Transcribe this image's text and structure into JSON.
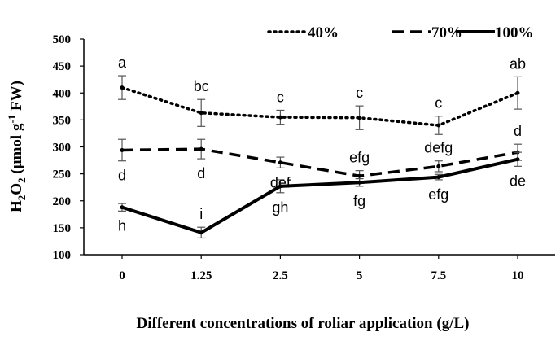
{
  "chart_data": {
    "type": "line",
    "title": "",
    "xlabel": "Different concentrations of roliar application (g/L)",
    "ylabel": {
      "main": "H",
      "sub1": "2",
      "mid": "O",
      "sub2": "2",
      "unit_a": " (µmol g",
      "sup": "-1",
      "unit_b": " FW)"
    },
    "categories": [
      "0",
      "1.25",
      "2.5",
      "5",
      "7.5",
      "10"
    ],
    "ylim": [
      100,
      500
    ],
    "yticks": [
      100,
      150,
      200,
      250,
      300,
      350,
      400,
      450,
      500
    ],
    "grid": false,
    "legend_position": "top-right",
    "series": [
      {
        "name": "40%",
        "style": "dotted",
        "values": [
          410,
          363,
          355,
          354,
          340,
          400
        ],
        "errors": [
          22,
          25,
          13,
          22,
          17,
          30
        ],
        "letters": [
          "a",
          "bc",
          "c",
          "c",
          "c",
          "ab"
        ],
        "letter_side": [
          "above",
          "above",
          "above",
          "above",
          "above",
          "above"
        ]
      },
      {
        "name": "70%",
        "style": "dashed",
        "values": [
          294,
          296,
          271,
          246,
          264,
          290
        ],
        "errors": [
          20,
          18,
          10,
          10,
          10,
          15
        ],
        "letters": [
          "d",
          "d",
          "def",
          "efg",
          "defg",
          "d"
        ],
        "letter_side": [
          "below",
          "below",
          "below",
          "above",
          "above",
          "above"
        ]
      },
      {
        "name": "100%",
        "style": "solid",
        "values": [
          188,
          141,
          227,
          234,
          244,
          277
        ],
        "errors": [
          7,
          10,
          12,
          7,
          5,
          13
        ],
        "letters": [
          "h",
          "i",
          "gh",
          "fg",
          "efg",
          "de"
        ],
        "letter_side": [
          "below",
          "above",
          "below",
          "below",
          "below",
          "below"
        ]
      }
    ]
  }
}
